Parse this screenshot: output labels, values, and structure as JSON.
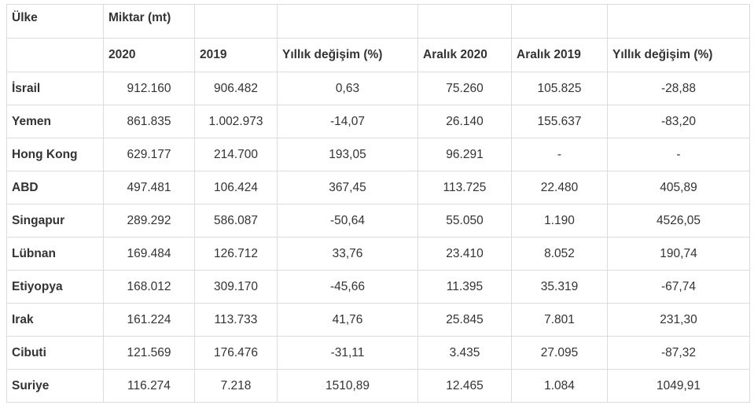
{
  "table": {
    "header_top": {
      "country": "Ülke",
      "quantity": "Miktar (mt)"
    },
    "header_sub": [
      "2020",
      "2019",
      "Yıllık değişim (%)",
      "Aralık 2020",
      "Aralık 2019",
      "Yıllık değişim (%)"
    ],
    "rows": [
      {
        "country": "İsrail",
        "v2020": "912.160",
        "v2019": "906.482",
        "change": "0,63",
        "dec2020": "75.260",
        "dec2019": "105.825",
        "dec_change": "-28,88"
      },
      {
        "country": "Yemen",
        "v2020": "861.835",
        "v2019": "1.002.973",
        "change": "-14,07",
        "dec2020": "26.140",
        "dec2019": "155.637",
        "dec_change": "-83,20"
      },
      {
        "country": "Hong Kong",
        "v2020": "629.177",
        "v2019": "214.700",
        "change": "193,05",
        "dec2020": "96.291",
        "dec2019": "-",
        "dec_change": "-"
      },
      {
        "country": "ABD",
        "v2020": "497.481",
        "v2019": "106.424",
        "change": "367,45",
        "dec2020": "113.725",
        "dec2019": "22.480",
        "dec_change": "405,89"
      },
      {
        "country": "Singapur",
        "v2020": "289.292",
        "v2019": "586.087",
        "change": "-50,64",
        "dec2020": "55.050",
        "dec2019": "1.190",
        "dec_change": "4526,05"
      },
      {
        "country": "Lübnan",
        "v2020": "169.484",
        "v2019": "126.712",
        "change": "33,76",
        "dec2020": "23.410",
        "dec2019": "8.052",
        "dec_change": "190,74"
      },
      {
        "country": "Etiyopya",
        "v2020": "168.012",
        "v2019": "309.170",
        "change": "-45,66",
        "dec2020": "11.395",
        "dec2019": "35.319",
        "dec_change": "-67,74"
      },
      {
        "country": "Irak",
        "v2020": "161.224",
        "v2019": "113.733",
        "change": "41,76",
        "dec2020": "25.845",
        "dec2019": "7.801",
        "dec_change": "231,30"
      },
      {
        "country": "Cibuti",
        "v2020": "121.569",
        "v2019": "176.476",
        "change": "-31,11",
        "dec2020": "3.435",
        "dec2019": "27.095",
        "dec_change": "-87,32"
      },
      {
        "country": "Suriye",
        "v2020": "116.274",
        "v2019": "7.218",
        "change": "1510,89",
        "dec2020": "12.465",
        "dec2019": "1.084",
        "dec_change": "1049,91"
      }
    ]
  }
}
